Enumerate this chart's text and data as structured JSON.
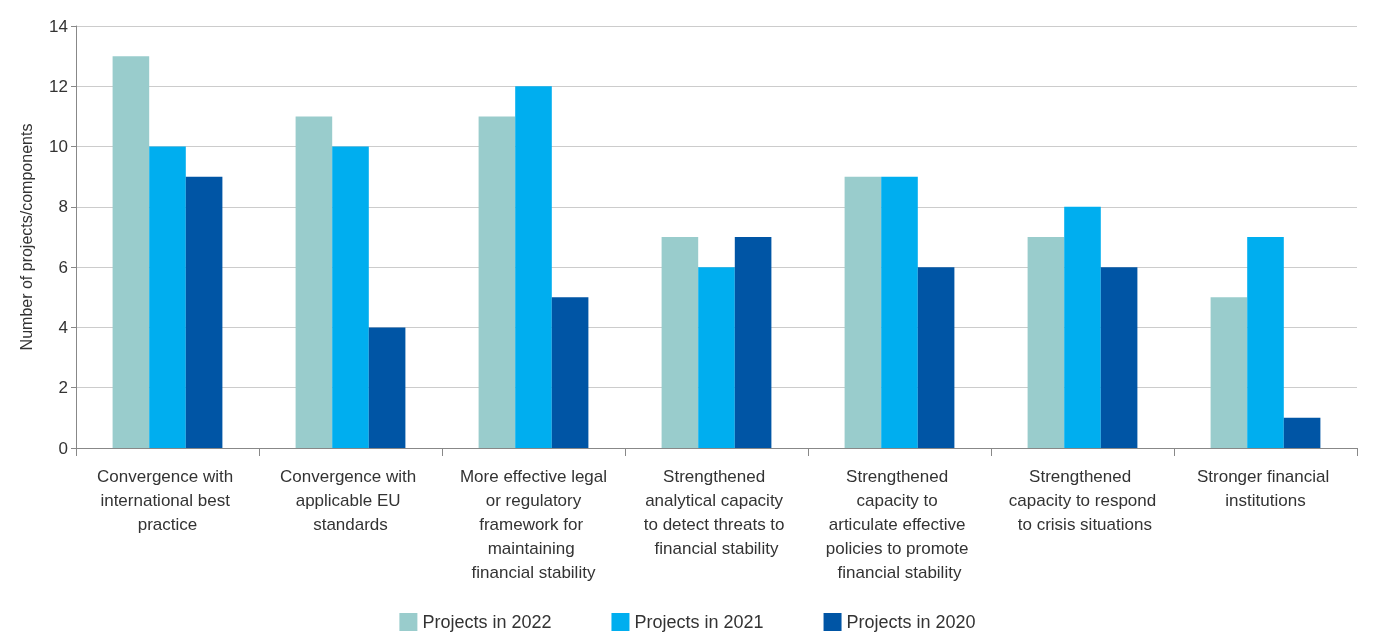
{
  "chart_data": {
    "type": "bar",
    "ylabel": "Number of projects/components",
    "categories": [
      "Convergence with international best practice",
      "Convergence with applicable EU standards",
      "More effective legal or regulatory framework for maintaining financial stability",
      "Strengthened analytical capacity to detect threats to financial stability",
      "Strengthened capacity to articulate effective policies to promote financial stability",
      "Strengthened capacity to respond to crisis situations",
      "Stronger financial institutions"
    ],
    "series": [
      {
        "name": "Projects in 2022",
        "color": "#99cccc",
        "values": [
          13,
          11,
          11,
          7,
          9,
          7,
          5
        ]
      },
      {
        "name": "Projects in 2021",
        "color": "#00aeef",
        "values": [
          10,
          10,
          12,
          6,
          9,
          8,
          7
        ]
      },
      {
        "name": "Projects in 2020",
        "color": "#0055a5",
        "values": [
          9,
          4,
          5,
          7,
          6,
          6,
          1
        ]
      }
    ],
    "ylim": [
      0,
      14
    ],
    "yticks": [
      0,
      2,
      4,
      6,
      8,
      10,
      12,
      14
    ],
    "grid": "y",
    "legend": "bottom"
  }
}
